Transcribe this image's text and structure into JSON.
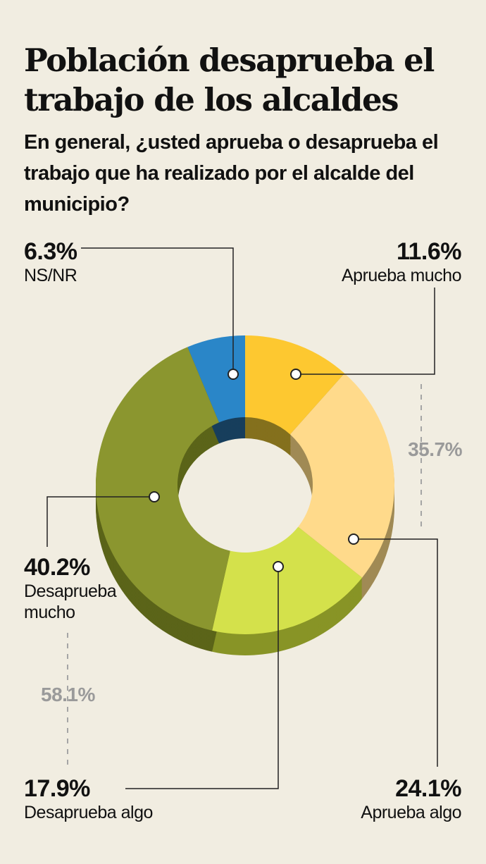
{
  "title": "Población desaprueba el trabajo de los alcaldes",
  "subtitle": "En general, ¿usted aprueba o desaprueba el trabajo que ha realizado por el alcalde del municipio?",
  "chart_data": {
    "type": "pie",
    "title": "Población desaprueba el trabajo de los alcaldes",
    "subtitle": "En general, ¿usted aprueba o desaprueba el trabajo que ha realizado por el alcalde del municipio?",
    "slices": [
      {
        "label": "Aprueba mucho",
        "value": 11.6,
        "display": "11.6%",
        "color": "#fdc830"
      },
      {
        "label": "Aprueba algo",
        "value": 24.1,
        "display": "24.1%",
        "color": "#ffda8b"
      },
      {
        "label": "Desaprueba algo",
        "value": 17.9,
        "display": "17.9%",
        "color": "#d4e14b"
      },
      {
        "label": "Desaprueba mucho",
        "value": 40.2,
        "display": "40.2%",
        "color": "#8b962f"
      },
      {
        "label": "NS/NR",
        "value": 6.3,
        "display": "6.3%",
        "color": "#2a86c8"
      }
    ],
    "group_totals": [
      {
        "display": "35.7%",
        "members": [
          "Aprueba mucho",
          "Aprueba algo"
        ]
      },
      {
        "display": "58.1%",
        "members": [
          "Desaprueba algo",
          "Desaprueba mucho"
        ]
      }
    ],
    "shadow_colors": [
      "#84701d",
      "#a08a55",
      "#889426",
      "#5b6419",
      "#173e5c"
    ]
  },
  "labels": {
    "nsnr": {
      "pct": "6.3%",
      "name": "NS/NR"
    },
    "aprueba_mucho": {
      "pct": "11.6%",
      "name": "Aprueba mucho"
    },
    "aprueba_algo": {
      "pct": "24.1%",
      "name": "Aprueba algo"
    },
    "desaprueba_algo": {
      "pct": "17.9%",
      "name": "Desaprueba algo"
    },
    "desaprueba_mucho": {
      "pct": "40.2%",
      "name_line1": "Desaprueba",
      "name_line2": "mucho"
    },
    "group_aprueba": "35.7%",
    "group_desaprueba": "58.1%"
  }
}
